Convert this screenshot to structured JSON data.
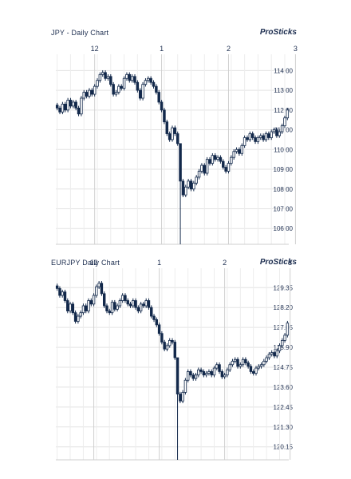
{
  "chart_data": [
    {
      "type": "candlestick",
      "title": "JPY - Daily Chart",
      "brand": "ProSticks",
      "month_labels": [
        {
          "label": "12",
          "index": 14
        },
        {
          "label": "1",
          "index": 39
        },
        {
          "label": "2",
          "index": 64
        },
        {
          "label": "3",
          "index": 89
        }
      ],
      "y_ticks": [
        "114.00",
        "113.00",
        "112.00",
        "111.00",
        "110.00",
        "109.00",
        "108.00",
        "107.00",
        "106.00"
      ],
      "y_values": [
        114,
        113,
        112,
        111,
        110,
        109,
        108,
        107,
        106
      ],
      "ylim": [
        105.2,
        114.5
      ],
      "grid": true,
      "closes": [
        112.1,
        111.9,
        112.3,
        112.0,
        112.5,
        112.2,
        112.4,
        112.1,
        111.8,
        112.6,
        112.9,
        112.7,
        113.0,
        112.8,
        113.2,
        113.5,
        113.8,
        113.9,
        113.6,
        113.7,
        113.3,
        112.8,
        112.9,
        113.2,
        113.1,
        113.6,
        113.8,
        113.5,
        113.7,
        113.4,
        113.0,
        112.6,
        113.3,
        113.5,
        113.6,
        113.4,
        113.2,
        112.9,
        112.4,
        112.0,
        111.4,
        110.8,
        110.5,
        111.1,
        110.8,
        110.3,
        108.4,
        107.7,
        108.1,
        108.4,
        108.0,
        108.3,
        108.6,
        108.9,
        109.2,
        108.8,
        109.5,
        109.3,
        109.7,
        109.5,
        109.6,
        109.4,
        109.1,
        108.9,
        109.3,
        109.6,
        109.9,
        110.0,
        109.8,
        110.2,
        110.6,
        110.5,
        110.8,
        110.6,
        110.4,
        110.6,
        110.7,
        110.5,
        110.8,
        110.6,
        110.9,
        111.0,
        110.7,
        110.9,
        111.2,
        111.6,
        112.0
      ]
    },
    {
      "type": "candlestick",
      "title": "EURJPY  Daily Chart",
      "brand": "ProSticks",
      "month_labels": [
        {
          "label": "12",
          "index": 14
        },
        {
          "label": "1",
          "index": 39
        },
        {
          "label": "2",
          "index": 64
        },
        {
          "label": "3",
          "index": 89
        }
      ],
      "y_ticks": [
        "129.35",
        "128.20",
        "127.05",
        "125.90",
        "124.75",
        "123.60",
        "122.45",
        "121.30",
        "120.15"
      ],
      "y_values": [
        129.35,
        128.2,
        127.05,
        125.9,
        124.75,
        123.6,
        122.45,
        121.3,
        120.15
      ],
      "ylim": [
        119.4,
        130.1
      ],
      "grid": true,
      "closes": [
        129.3,
        128.9,
        129.1,
        128.6,
        128.0,
        128.4,
        127.9,
        127.4,
        127.7,
        127.9,
        128.3,
        128.0,
        128.6,
        128.4,
        128.9,
        129.4,
        129.6,
        129.0,
        128.3,
        128.0,
        127.9,
        128.5,
        128.1,
        128.3,
        128.6,
        128.9,
        128.6,
        128.4,
        128.3,
        128.6,
        128.2,
        128.0,
        128.4,
        128.3,
        128.6,
        128.2,
        127.7,
        127.5,
        127.2,
        126.7,
        126.2,
        125.8,
        126.0,
        126.3,
        126.2,
        125.3,
        123.2,
        122.8,
        123.3,
        124.0,
        124.5,
        124.3,
        124.1,
        124.3,
        124.6,
        124.5,
        124.3,
        124.4,
        124.5,
        124.3,
        124.7,
        124.9,
        124.5,
        124.2,
        124.3,
        124.6,
        124.9,
        125.1,
        125.2,
        124.8,
        124.9,
        125.2,
        125.0,
        124.8,
        124.5,
        124.4,
        124.7,
        124.8,
        124.9,
        125.1,
        125.3,
        125.5,
        125.6,
        125.4,
        125.7,
        126.0,
        126.3,
        126.6,
        127.3
      ]
    }
  ]
}
